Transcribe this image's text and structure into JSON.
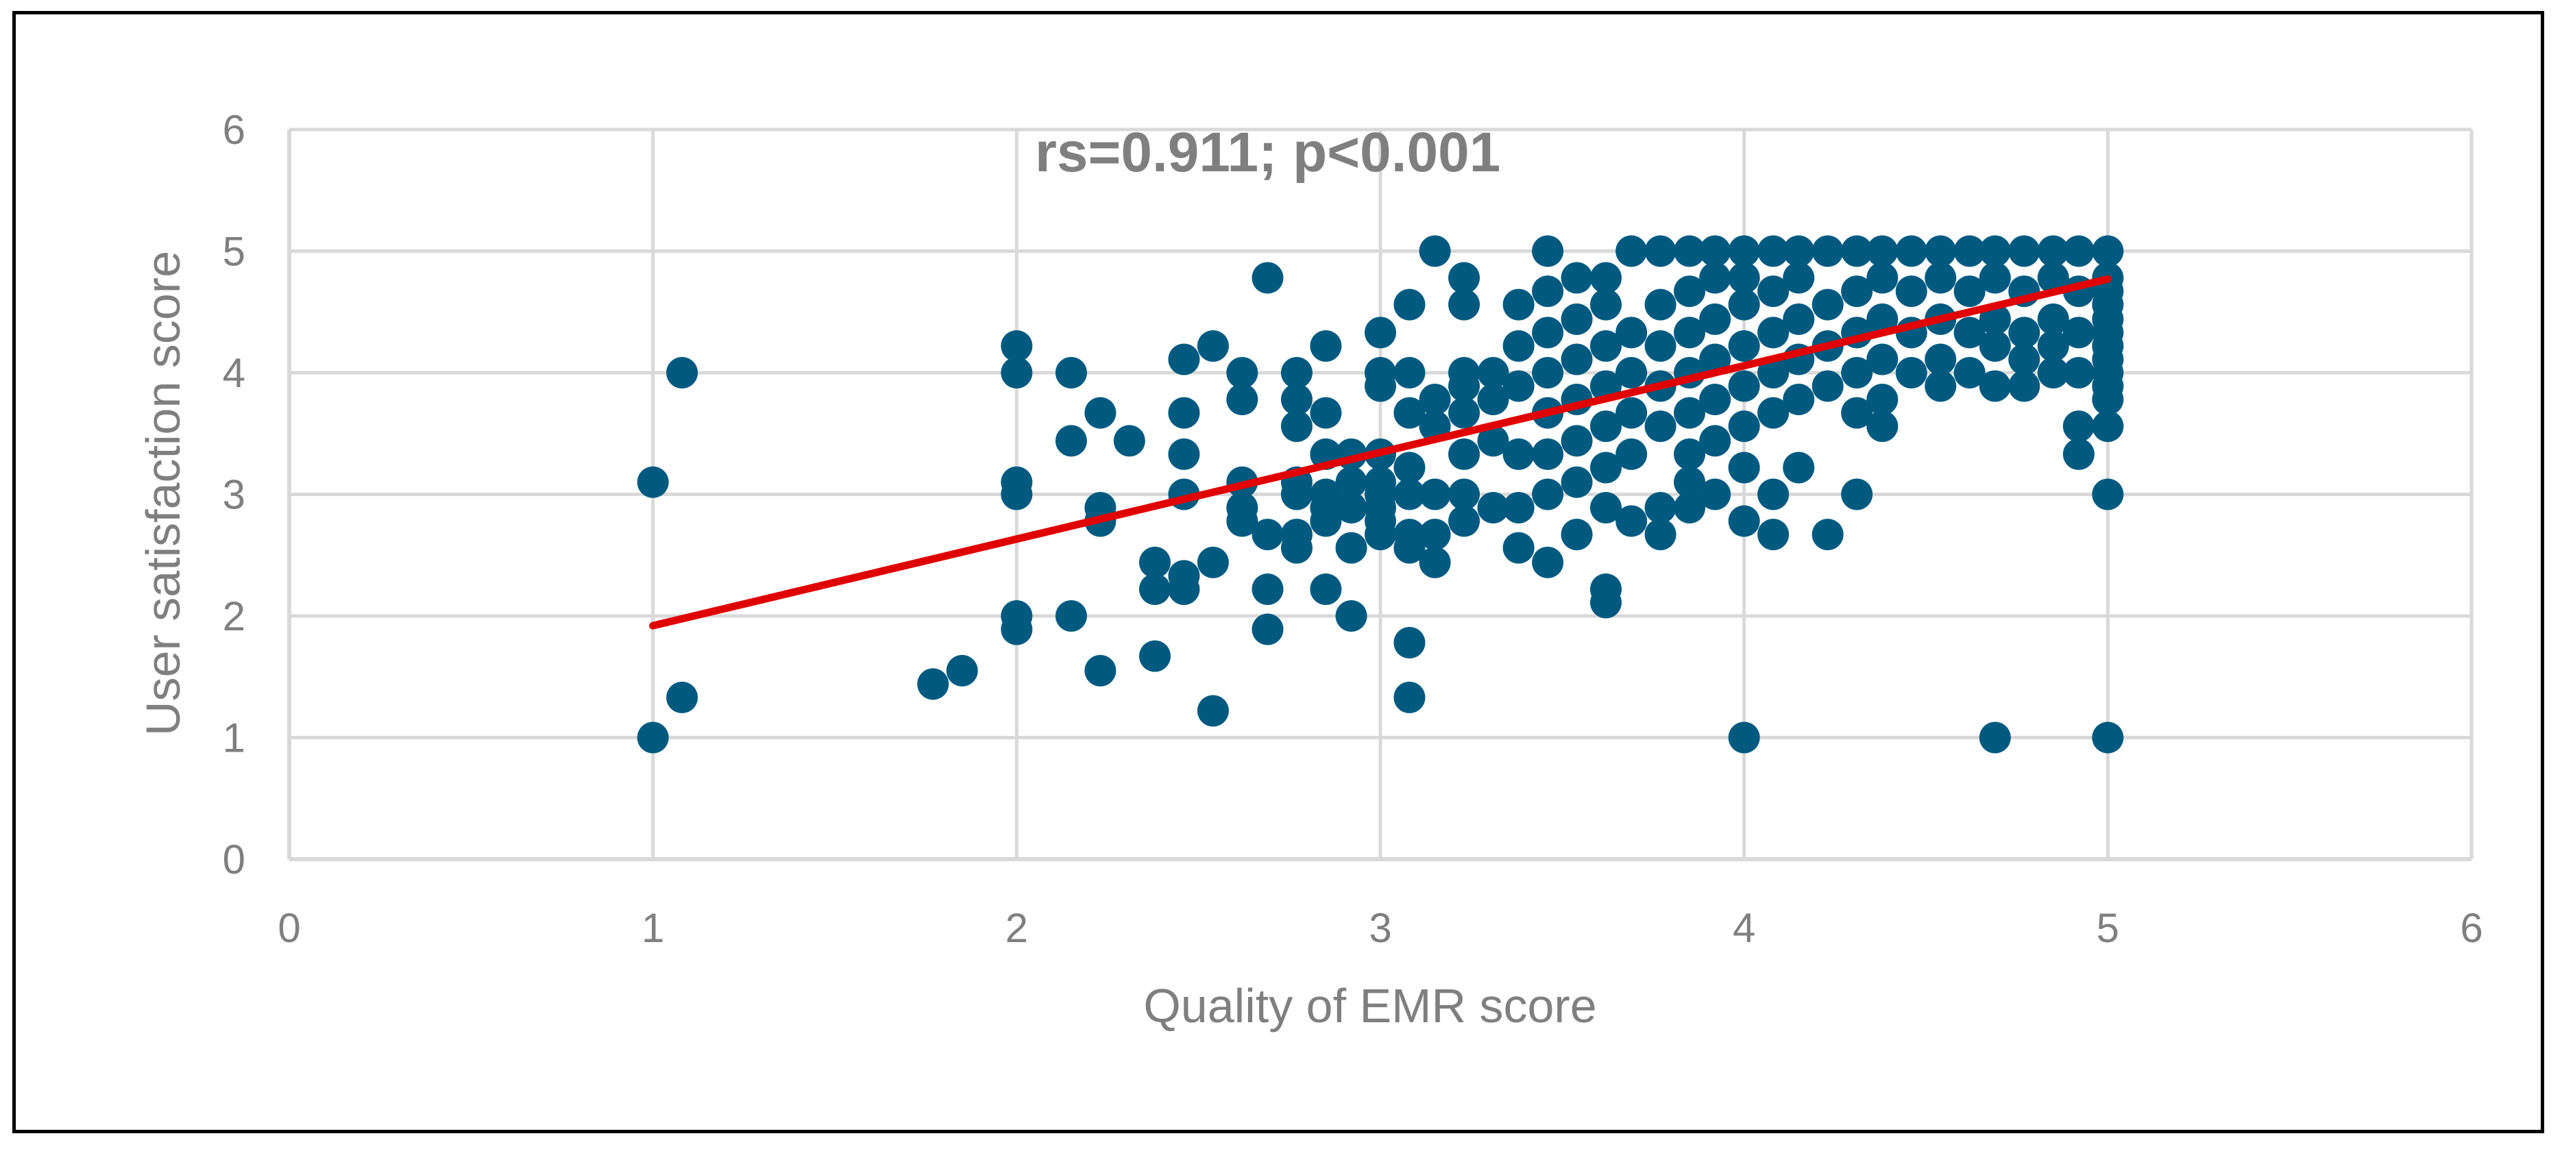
{
  "chart_data": {
    "type": "scatter",
    "title": "",
    "annotation": "rs=0.911; p<0.001",
    "xlabel": "Quality of EMR score",
    "ylabel": "User satisfaction score",
    "xlim": [
      0,
      6
    ],
    "ylim": [
      0,
      6
    ],
    "xticks": [
      0,
      1,
      2,
      3,
      4,
      5,
      6
    ],
    "yticks": [
      0,
      1,
      2,
      3,
      4,
      5,
      6
    ],
    "grid": true,
    "legend": "none",
    "colors": {
      "points": "#005a80",
      "trendline": "#e00000",
      "grid": "#d9d9d9",
      "text": "#7f7f7f"
    },
    "trendline": {
      "x": [
        1,
        5
      ],
      "y": [
        1.92,
        4.77
      ]
    },
    "series": [
      {
        "points": [
          [
            1,
            3.1
          ],
          [
            1,
            1
          ],
          [
            1.08,
            4
          ],
          [
            1.08,
            1.33
          ],
          [
            1.77,
            1.44
          ],
          [
            1.85,
            1.55
          ],
          [
            2,
            4.22
          ],
          [
            2,
            4
          ],
          [
            2,
            3.1
          ],
          [
            2,
            3
          ],
          [
            2,
            2
          ],
          [
            2,
            1.89
          ],
          [
            2.15,
            4
          ],
          [
            2.15,
            3.44
          ],
          [
            2.15,
            2
          ],
          [
            2.23,
            3.67
          ],
          [
            2.23,
            2.89
          ],
          [
            2.23,
            2.78
          ],
          [
            2.23,
            1.55
          ],
          [
            2.31,
            3.44
          ],
          [
            2.38,
            2.44
          ],
          [
            2.38,
            2.22
          ],
          [
            2.38,
            1.67
          ],
          [
            2.46,
            4.11
          ],
          [
            2.46,
            3.67
          ],
          [
            2.46,
            3.33
          ],
          [
            2.46,
            3
          ],
          [
            2.46,
            2.33
          ],
          [
            2.46,
            2.22
          ],
          [
            2.54,
            4.22
          ],
          [
            2.54,
            2.44
          ],
          [
            2.54,
            1.22
          ],
          [
            2.62,
            4
          ],
          [
            2.62,
            3.78
          ],
          [
            2.62,
            3.1
          ],
          [
            2.62,
            2.89
          ],
          [
            2.62,
            2.78
          ],
          [
            2.69,
            4.78
          ],
          [
            2.69,
            2.67
          ],
          [
            2.69,
            2.22
          ],
          [
            2.69,
            1.89
          ],
          [
            2.77,
            4
          ],
          [
            2.77,
            3.78
          ],
          [
            2.77,
            3.56
          ],
          [
            2.77,
            3.1
          ],
          [
            2.77,
            3
          ],
          [
            2.77,
            2.67
          ],
          [
            2.77,
            2.56
          ],
          [
            2.85,
            4.22
          ],
          [
            2.85,
            3.67
          ],
          [
            2.85,
            3.33
          ],
          [
            2.85,
            3
          ],
          [
            2.85,
            2.89
          ],
          [
            2.85,
            2.78
          ],
          [
            2.85,
            2.22
          ],
          [
            2.92,
            3.33
          ],
          [
            2.92,
            3.1
          ],
          [
            2.92,
            2.89
          ],
          [
            2.92,
            2.56
          ],
          [
            2.92,
            2
          ],
          [
            3,
            4.33
          ],
          [
            3,
            4
          ],
          [
            3,
            3.89
          ],
          [
            3,
            3.33
          ],
          [
            3,
            3.1
          ],
          [
            3,
            3
          ],
          [
            3,
            2.89
          ],
          [
            3,
            2.78
          ],
          [
            3,
            2.67
          ],
          [
            3.08,
            4.56
          ],
          [
            3.08,
            4
          ],
          [
            3.08,
            3.67
          ],
          [
            3.08,
            3.22
          ],
          [
            3.08,
            3
          ],
          [
            3.08,
            2.67
          ],
          [
            3.08,
            2.56
          ],
          [
            3.08,
            1.78
          ],
          [
            3.08,
            1.33
          ],
          [
            3.15,
            5
          ],
          [
            3.15,
            3.78
          ],
          [
            3.15,
            3.56
          ],
          [
            3.15,
            3
          ],
          [
            3.15,
            2.67
          ],
          [
            3.15,
            2.44
          ],
          [
            3.23,
            4.78
          ],
          [
            3.23,
            4.56
          ],
          [
            3.23,
            4
          ],
          [
            3.23,
            3.89
          ],
          [
            3.23,
            3.67
          ],
          [
            3.23,
            3.33
          ],
          [
            3.23,
            3
          ],
          [
            3.23,
            2.78
          ],
          [
            3.31,
            4
          ],
          [
            3.31,
            3.78
          ],
          [
            3.31,
            3.44
          ],
          [
            3.31,
            2.89
          ],
          [
            3.38,
            4.56
          ],
          [
            3.38,
            4.22
          ],
          [
            3.38,
            3.89
          ],
          [
            3.38,
            3.33
          ],
          [
            3.38,
            2.89
          ],
          [
            3.38,
            2.56
          ],
          [
            3.46,
            5
          ],
          [
            3.46,
            4.67
          ],
          [
            3.46,
            4.33
          ],
          [
            3.46,
            4
          ],
          [
            3.46,
            3.67
          ],
          [
            3.46,
            3.33
          ],
          [
            3.46,
            3
          ],
          [
            3.46,
            2.44
          ],
          [
            3.54,
            4.78
          ],
          [
            3.54,
            4.44
          ],
          [
            3.54,
            4.11
          ],
          [
            3.54,
            3.78
          ],
          [
            3.54,
            3.44
          ],
          [
            3.54,
            3.1
          ],
          [
            3.54,
            2.67
          ],
          [
            3.62,
            4.78
          ],
          [
            3.62,
            4.56
          ],
          [
            3.62,
            4.22
          ],
          [
            3.62,
            3.89
          ],
          [
            3.62,
            3.56
          ],
          [
            3.62,
            3.22
          ],
          [
            3.62,
            2.89
          ],
          [
            3.62,
            2.22
          ],
          [
            3.62,
            2.11
          ],
          [
            3.69,
            5
          ],
          [
            3.69,
            4.33
          ],
          [
            3.69,
            4
          ],
          [
            3.69,
            3.67
          ],
          [
            3.69,
            3.33
          ],
          [
            3.69,
            2.78
          ],
          [
            3.77,
            5
          ],
          [
            3.77,
            4.56
          ],
          [
            3.77,
            4.22
          ],
          [
            3.77,
            3.89
          ],
          [
            3.77,
            3.56
          ],
          [
            3.77,
            2.89
          ],
          [
            3.77,
            2.67
          ],
          [
            3.85,
            5
          ],
          [
            3.85,
            4.67
          ],
          [
            3.85,
            4.33
          ],
          [
            3.85,
            4
          ],
          [
            3.85,
            3.67
          ],
          [
            3.85,
            3.33
          ],
          [
            3.85,
            3.1
          ],
          [
            3.85,
            2.89
          ],
          [
            3.92,
            5
          ],
          [
            3.92,
            4.78
          ],
          [
            3.92,
            4.44
          ],
          [
            3.92,
            4.11
          ],
          [
            3.92,
            3.78
          ],
          [
            3.92,
            3.44
          ],
          [
            3.92,
            3
          ],
          [
            4,
            5
          ],
          [
            4,
            4.78
          ],
          [
            4,
            4.56
          ],
          [
            4,
            4.22
          ],
          [
            4,
            3.89
          ],
          [
            4,
            3.56
          ],
          [
            4,
            3.22
          ],
          [
            4,
            2.78
          ],
          [
            4,
            1
          ],
          [
            4.08,
            5
          ],
          [
            4.08,
            4.67
          ],
          [
            4.08,
            4.33
          ],
          [
            4.08,
            4
          ],
          [
            4.08,
            3.67
          ],
          [
            4.08,
            3
          ],
          [
            4.08,
            2.67
          ],
          [
            4.15,
            5
          ],
          [
            4.15,
            4.78
          ],
          [
            4.15,
            4.44
          ],
          [
            4.15,
            4.11
          ],
          [
            4.15,
            3.78
          ],
          [
            4.15,
            3.22
          ],
          [
            4.23,
            5
          ],
          [
            4.23,
            4.56
          ],
          [
            4.23,
            4.22
          ],
          [
            4.23,
            3.89
          ],
          [
            4.23,
            2.67
          ],
          [
            4.31,
            5
          ],
          [
            4.31,
            4.67
          ],
          [
            4.31,
            4.33
          ],
          [
            4.31,
            4
          ],
          [
            4.31,
            3.67
          ],
          [
            4.31,
            3
          ],
          [
            4.38,
            5
          ],
          [
            4.38,
            4.78
          ],
          [
            4.38,
            4.44
          ],
          [
            4.38,
            4.11
          ],
          [
            4.38,
            3.78
          ],
          [
            4.38,
            3.56
          ],
          [
            4.46,
            5
          ],
          [
            4.46,
            4.67
          ],
          [
            4.46,
            4.33
          ],
          [
            4.46,
            4
          ],
          [
            4.54,
            5
          ],
          [
            4.54,
            4.78
          ],
          [
            4.54,
            4.44
          ],
          [
            4.54,
            4.11
          ],
          [
            4.54,
            3.89
          ],
          [
            4.62,
            5
          ],
          [
            4.62,
            4.67
          ],
          [
            4.62,
            4.33
          ],
          [
            4.62,
            4
          ],
          [
            4.69,
            5
          ],
          [
            4.69,
            4.78
          ],
          [
            4.69,
            4.44
          ],
          [
            4.69,
            4.22
          ],
          [
            4.69,
            3.89
          ],
          [
            4.69,
            1
          ],
          [
            4.77,
            5
          ],
          [
            4.77,
            4.67
          ],
          [
            4.77,
            4.33
          ],
          [
            4.77,
            4.11
          ],
          [
            4.77,
            3.89
          ],
          [
            4.85,
            5
          ],
          [
            4.85,
            4.78
          ],
          [
            4.85,
            4.44
          ],
          [
            4.85,
            4.22
          ],
          [
            4.85,
            4
          ],
          [
            4.92,
            5
          ],
          [
            4.92,
            4.67
          ],
          [
            4.92,
            4.33
          ],
          [
            4.92,
            4
          ],
          [
            4.92,
            3.56
          ],
          [
            4.92,
            3.33
          ],
          [
            5,
            5
          ],
          [
            5,
            4.78
          ],
          [
            5,
            4.67
          ],
          [
            5,
            4.56
          ],
          [
            5,
            4.44
          ],
          [
            5,
            4.33
          ],
          [
            5,
            4.22
          ],
          [
            5,
            4.11
          ],
          [
            5,
            4
          ],
          [
            5,
            3.89
          ],
          [
            5,
            3.78
          ],
          [
            5,
            3.56
          ],
          [
            5,
            3
          ],
          [
            5,
            1
          ]
        ]
      }
    ]
  }
}
